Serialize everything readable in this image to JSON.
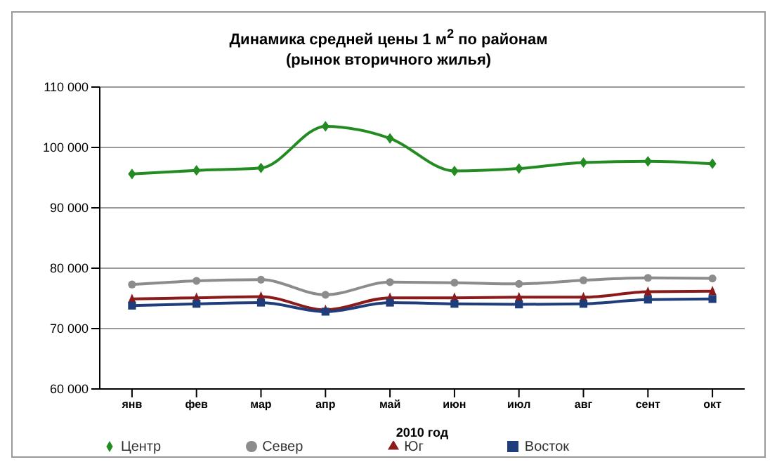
{
  "chart_data": {
    "type": "line",
    "title": "Динамика средней цены 1 м$^{2}$ по районам",
    "subtitle": "(рынок вторичного жилья)",
    "xlabel": "2010 год",
    "categories": [
      "янв",
      "фев",
      "мар",
      "апр",
      "май",
      "июн",
      "июл",
      "авг",
      "сент",
      "окт"
    ],
    "series": [
      {
        "name": "Центр",
        "color": "#228b22",
        "marker": "diamond",
        "values": [
          95600,
          96200,
          96600,
          103500,
          101500,
          96100,
          96500,
          97500,
          97700,
          97300
        ]
      },
      {
        "name": "Север",
        "color": "#8c8c8c",
        "marker": "circle",
        "values": [
          77300,
          77900,
          78100,
          75600,
          77700,
          77600,
          77400,
          78000,
          78400,
          78300
        ]
      },
      {
        "name": "Юг",
        "color": "#8b1a1a",
        "marker": "triangle",
        "values": [
          74900,
          75100,
          75300,
          73100,
          75100,
          75100,
          75200,
          75200,
          76100,
          76200
        ]
      },
      {
        "name": "Восток",
        "color": "#1f3d7a",
        "marker": "square",
        "values": [
          73800,
          74100,
          74300,
          72800,
          74300,
          74100,
          74000,
          74100,
          74800,
          74900
        ]
      }
    ],
    "ylim": [
      60000,
      110000
    ],
    "yticks": [
      {
        "value": 60000,
        "label": "60 000"
      },
      {
        "value": 70000,
        "label": "70 000"
      },
      {
        "value": 80000,
        "label": "80 000"
      },
      {
        "value": 90000,
        "label": "90 000"
      },
      {
        "value": 100000,
        "label": "100 000"
      },
      {
        "value": 110000,
        "label": "110 000"
      }
    ],
    "grid": "y",
    "legend": "bottom"
  }
}
